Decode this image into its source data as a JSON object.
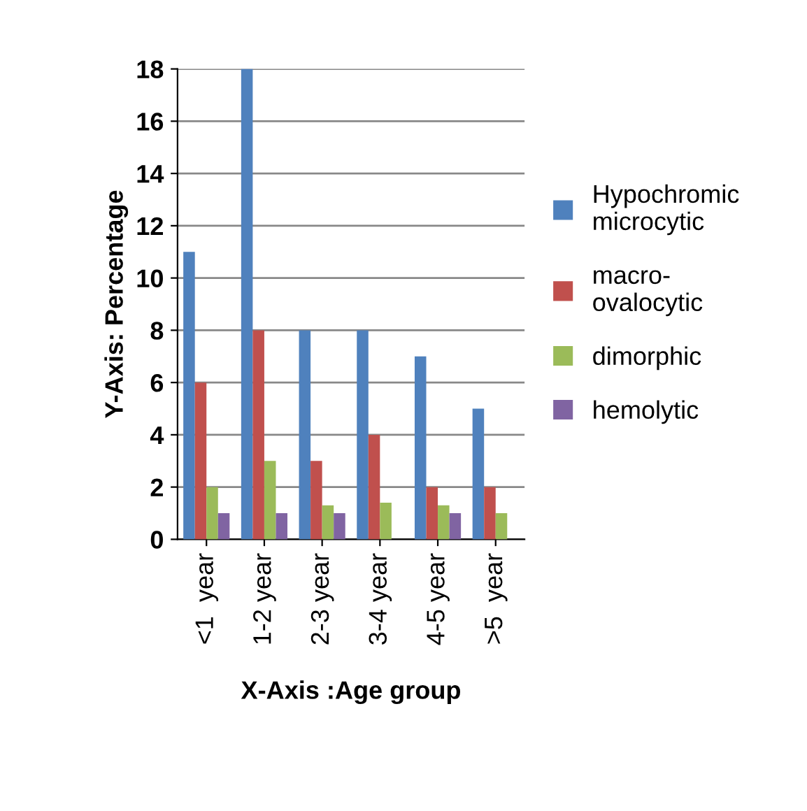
{
  "chart_data": {
    "type": "bar",
    "xlabel": "X-Axis :Age group",
    "ylabel": "Y-Axis: Percentage",
    "categories": [
      "<1  year",
      "1-2 year",
      "2-3 year",
      "3-4 year",
      "4-5 year",
      ">5  year"
    ],
    "series": [
      {
        "name": "Hypochromic\nmicrocytic",
        "color": "#4f81bd",
        "values": [
          11,
          18,
          8,
          8,
          7,
          5
        ]
      },
      {
        "name": "macro-\novalocytic",
        "color": "#c0504d",
        "values": [
          6,
          8,
          3,
          4,
          2,
          2
        ]
      },
      {
        "name": "dimorphic",
        "color": "#9bbb59",
        "values": [
          2,
          3,
          1.3,
          1.4,
          1.3,
          1
        ]
      },
      {
        "name": "hemolytic",
        "color": "#8064a2",
        "values": [
          1,
          1,
          1,
          null,
          1,
          null
        ]
      }
    ],
    "ylim": [
      0,
      18
    ],
    "yticks": [
      0,
      2,
      4,
      6,
      8,
      10,
      12,
      14,
      16,
      18
    ],
    "grid": "y",
    "legend": "right"
  }
}
